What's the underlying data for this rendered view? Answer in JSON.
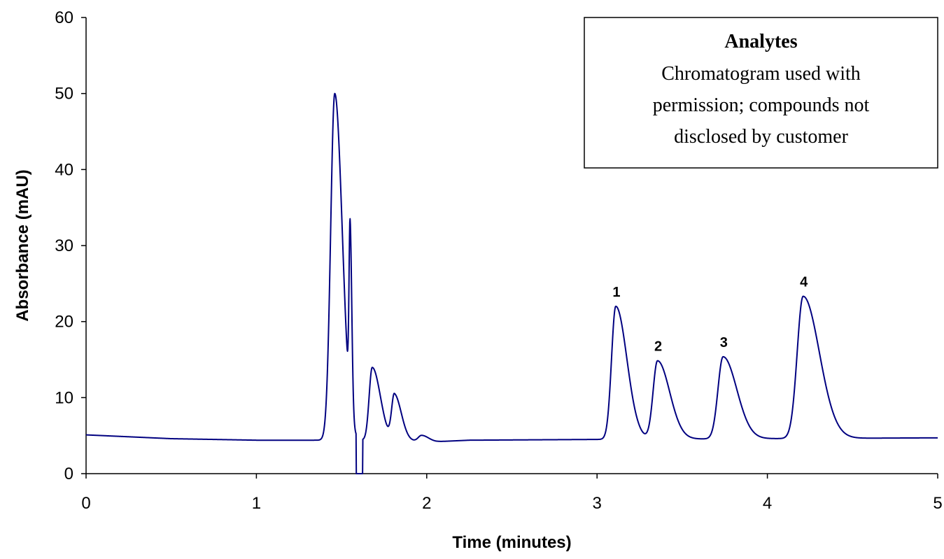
{
  "chart_data": {
    "type": "line",
    "xlabel": "Time (minutes)",
    "ylabel": "Absorbance (mAU)",
    "xlim": [
      0,
      5
    ],
    "ylim": [
      0,
      60
    ],
    "x_ticks": [
      0,
      1,
      2,
      3,
      4,
      5
    ],
    "y_ticks": [
      0,
      10,
      20,
      30,
      40,
      50,
      60
    ],
    "x_tick_labels": [
      "0",
      "1",
      "2",
      "3",
      "4",
      "5"
    ],
    "y_tick_labels": [
      "0",
      "10",
      "20",
      "30",
      "40",
      "50",
      "60"
    ],
    "grid": false,
    "legend_placement": "top-right",
    "line_color": "#000080",
    "baseline": {
      "points": [
        [
          0.0,
          5.1
        ],
        [
          0.5,
          4.6
        ],
        [
          1.0,
          4.4
        ],
        [
          1.38,
          4.4
        ],
        [
          1.62,
          4.4
        ],
        [
          2.05,
          4.2
        ],
        [
          2.25,
          4.4
        ],
        [
          3.0,
          4.5
        ],
        [
          4.9,
          4.7
        ],
        [
          5.0,
          4.7
        ]
      ]
    },
    "peaks": [
      {
        "center": 1.46,
        "height": 45.6,
        "sigma": 0.024,
        "tail": 0.02
      },
      {
        "center": 1.55,
        "height": 23.5,
        "sigma": 0.006,
        "tail": 0.004
      },
      {
        "center": 1.68,
        "height": 9.6,
        "sigma": 0.018,
        "tail": 0.03
      },
      {
        "center": 1.81,
        "height": 6.0,
        "sigma": 0.016,
        "tail": 0.025
      },
      {
        "center": 1.97,
        "height": 0.8,
        "sigma": 0.02,
        "tail": 0.02
      },
      {
        "center": 3.11,
        "height": 17.5,
        "sigma": 0.025,
        "tail": 0.04,
        "label": "1"
      },
      {
        "center": 3.355,
        "height": 10.3,
        "sigma": 0.026,
        "tail": 0.045,
        "label": "2"
      },
      {
        "center": 3.74,
        "height": 10.8,
        "sigma": 0.03,
        "tail": 0.05,
        "label": "3"
      },
      {
        "center": 4.21,
        "height": 18.7,
        "sigma": 0.035,
        "tail": 0.06,
        "label": "4"
      }
    ],
    "dip": {
      "start": 1.585,
      "end": 1.625,
      "min": 0
    },
    "legend": {
      "title": "Analytes",
      "lines": [
        "Chromatogram used with",
        "permission; compounds not",
        "disclosed by customer"
      ]
    }
  }
}
